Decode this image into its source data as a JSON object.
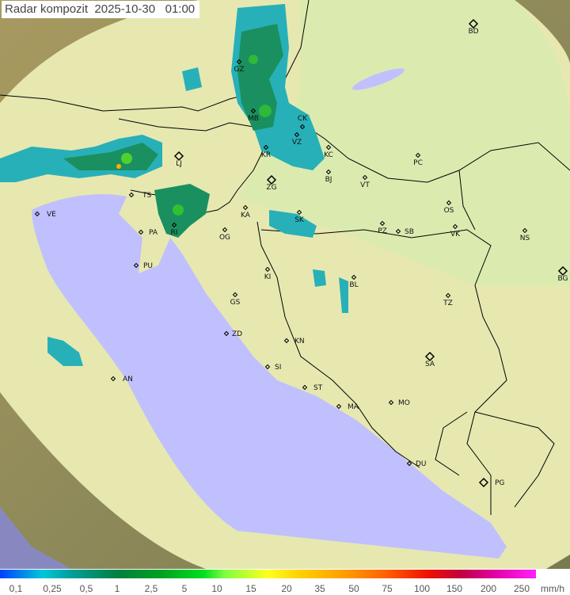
{
  "title": "Radar kompozit  2025-10-30   01:00",
  "colors": {
    "sea": "#c0c0ff",
    "land": "#e8eab0",
    "mask": "#8a8460",
    "border": "#000000",
    "radar_light": "#20b0c0",
    "radar_mid": "#189060",
    "radar_heavy": "#30c030"
  },
  "legend": {
    "unit": "mm/h",
    "labels": [
      "0,1",
      "0,25",
      "0,5",
      "1",
      "2,5",
      "5",
      "10",
      "15",
      "20",
      "35",
      "50",
      "75",
      "100",
      "150",
      "200",
      "250"
    ]
  },
  "cities": [
    {
      "code": "BD",
      "big": true
    },
    {
      "code": "GZ"
    },
    {
      "code": "MB"
    },
    {
      "code": "CK"
    },
    {
      "code": "VZ"
    },
    {
      "code": "KR"
    },
    {
      "code": "KC"
    },
    {
      "code": "BJ"
    },
    {
      "code": "ZG",
      "big": true
    },
    {
      "code": "LJ",
      "big": true
    },
    {
      "code": "TS"
    },
    {
      "code": "RI"
    },
    {
      "code": "PA"
    },
    {
      "code": "OG"
    },
    {
      "code": "KA"
    },
    {
      "code": "SK"
    },
    {
      "code": "PC"
    },
    {
      "code": "VT"
    },
    {
      "code": "OS"
    },
    {
      "code": "VK"
    },
    {
      "code": "NS"
    },
    {
      "code": "PZ"
    },
    {
      "code": "SB"
    },
    {
      "code": "BG",
      "big": true
    },
    {
      "code": "BL"
    },
    {
      "code": "PU"
    },
    {
      "code": "GS"
    },
    {
      "code": "TZ"
    },
    {
      "code": "KN"
    },
    {
      "code": "ZD"
    },
    {
      "code": "SI"
    },
    {
      "code": "SA",
      "big": true
    },
    {
      "code": "AN"
    },
    {
      "code": "ST"
    },
    {
      "code": "MA"
    },
    {
      "code": "MO"
    },
    {
      "code": "DU"
    },
    {
      "code": "PG",
      "big": true
    },
    {
      "code": "VE"
    },
    {
      "code": "KI"
    }
  ]
}
